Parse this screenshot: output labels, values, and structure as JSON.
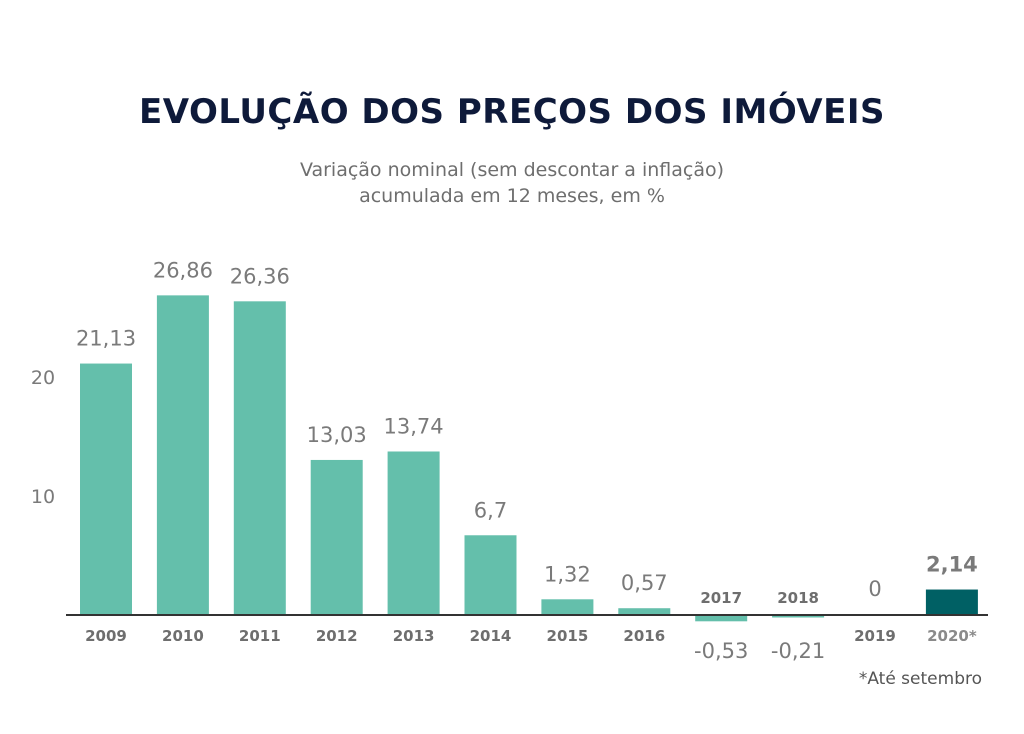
{
  "title": "EVOLUÇÃO DOS PREÇOS DOS IMÓVEIS",
  "subtitle_line1": "Variação nominal (sem descontar a inflação)",
  "subtitle_line2": "acumulada em 12 meses, em %",
  "footnote": "*Até setembro",
  "colors": {
    "bar": "#64bfab",
    "highlight": "#006064",
    "axis": "#333333",
    "title": "#0e1a3a",
    "label": "#7a7a7a",
    "year_label": "#6e6e6e"
  },
  "chart_data": {
    "type": "bar",
    "categories": [
      "2009",
      "2010",
      "2011",
      "2012",
      "2013",
      "2014",
      "2015",
      "2016",
      "2017",
      "2018",
      "2019",
      "2020*"
    ],
    "values": [
      21.13,
      26.86,
      26.36,
      13.03,
      13.74,
      6.7,
      1.32,
      0.57,
      -0.53,
      -0.21,
      0,
      2.14
    ],
    "value_labels": [
      "21,13",
      "26,86",
      "26,36",
      "13,03",
      "13,74",
      "6,7",
      "1,32",
      "0,57",
      "-0,53",
      "-0,21",
      "0",
      "2,14"
    ],
    "highlight_category": "2020*",
    "y_ticks": [
      "10",
      "20"
    ],
    "y_tick_values": [
      10,
      20
    ],
    "ylim": [
      -1,
      27
    ],
    "grid": false,
    "legend": "none",
    "title": "EVOLUÇÃO DOS PREÇOS DOS IMÓVEIS",
    "xlabel": "",
    "ylabel": ""
  }
}
